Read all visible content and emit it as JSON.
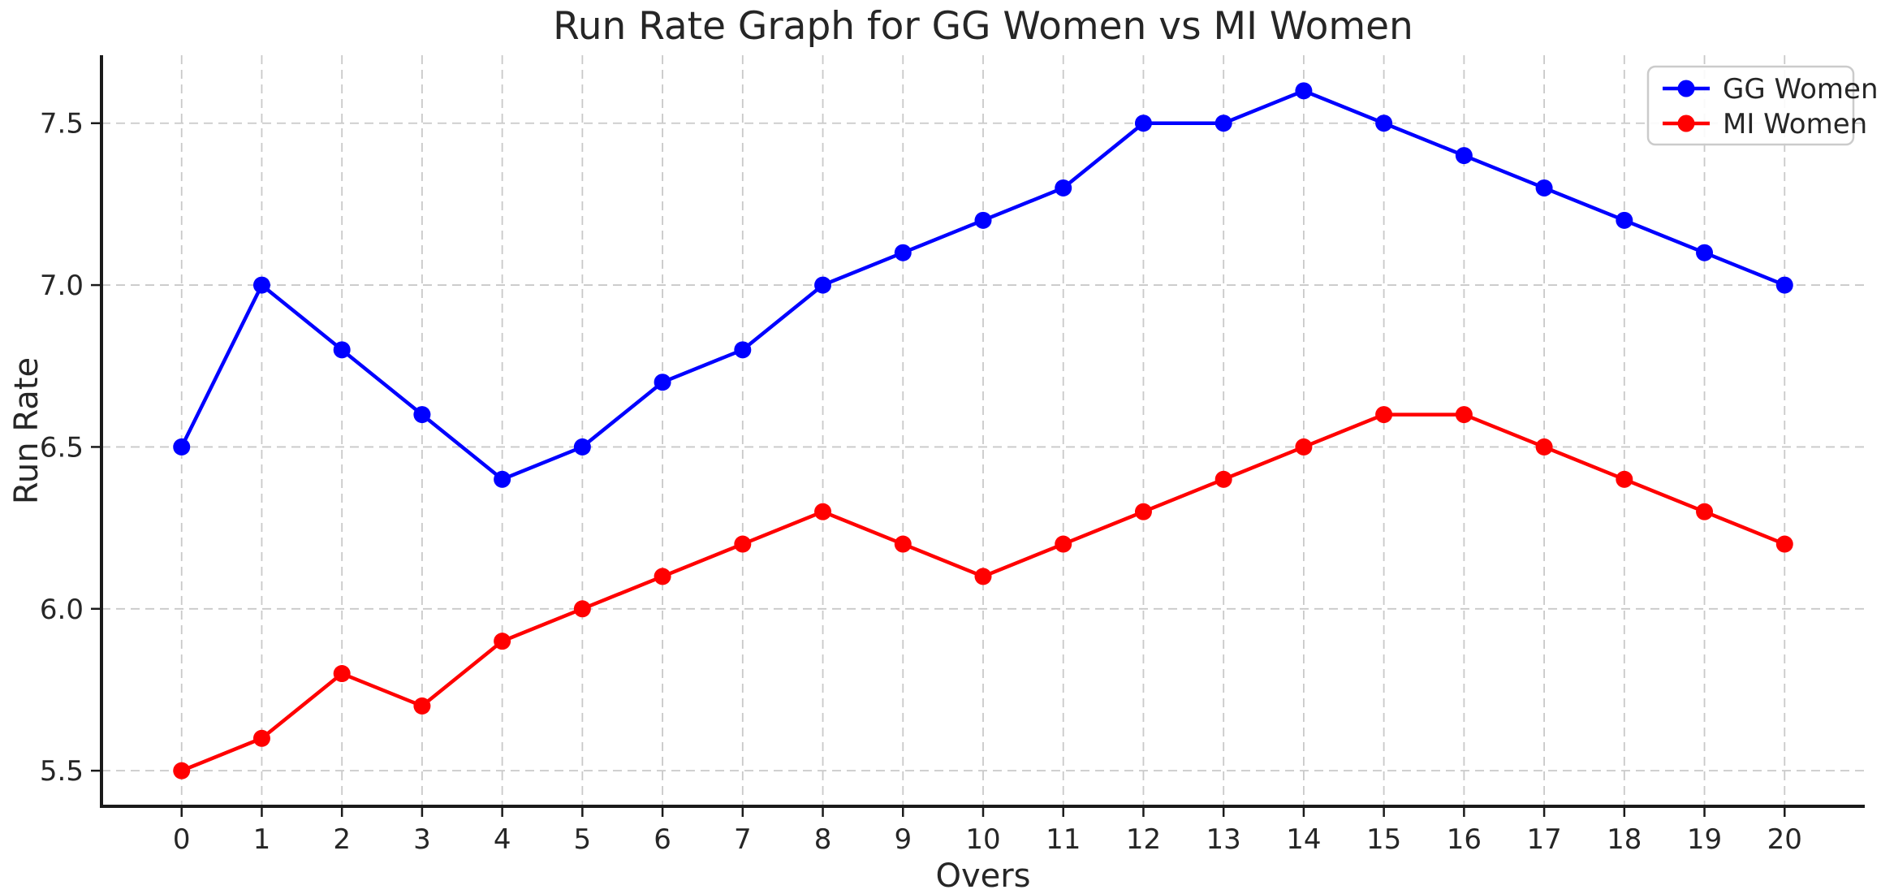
{
  "figure": {
    "title": "Run Rate Graph for GG Women vs MI Women",
    "background": "#ffffff"
  },
  "chart_data": {
    "type": "line",
    "title": "Run Rate Graph for GG Women vs MI Women",
    "xlabel": "Overs",
    "ylabel": "Run Rate",
    "x": [
      0,
      1,
      2,
      3,
      4,
      5,
      6,
      7,
      8,
      9,
      10,
      11,
      12,
      13,
      14,
      15,
      16,
      17,
      18,
      19,
      20
    ],
    "series": [
      {
        "name": "GG Women",
        "color": "#0000ff",
        "marker": "circle",
        "values": [
          6.5,
          7.0,
          6.8,
          6.6,
          6.4,
          6.5,
          6.7,
          6.8,
          7.0,
          7.1,
          7.2,
          7.3,
          7.5,
          7.5,
          7.6,
          7.5,
          7.4,
          7.3,
          7.2,
          7.1,
          7.0
        ]
      },
      {
        "name": "MI Women",
        "color": "#ff0000",
        "marker": "circle",
        "values": [
          5.5,
          5.6,
          5.8,
          5.7,
          5.9,
          6.0,
          6.1,
          6.2,
          6.3,
          6.2,
          6.1,
          6.2,
          6.3,
          6.4,
          6.5,
          6.6,
          6.6,
          6.5,
          6.4,
          6.3,
          6.2
        ]
      }
    ],
    "xticks": [
      0,
      1,
      2,
      3,
      4,
      5,
      6,
      7,
      8,
      9,
      10,
      11,
      12,
      13,
      14,
      15,
      16,
      17,
      18,
      19,
      20
    ],
    "yticks": [
      5.5,
      6.0,
      6.5,
      7.0,
      7.5
    ],
    "xlim": [
      -1,
      21
    ],
    "ylim": [
      5.39,
      7.71
    ],
    "grid": true,
    "grid_style": "dashed",
    "grid_color": "#c9c9c9",
    "axis_color": "#1a1a1a",
    "text_color": "#262626",
    "legend_position": "upper right",
    "legend_entries": [
      "GG Women",
      "MI Women"
    ]
  }
}
